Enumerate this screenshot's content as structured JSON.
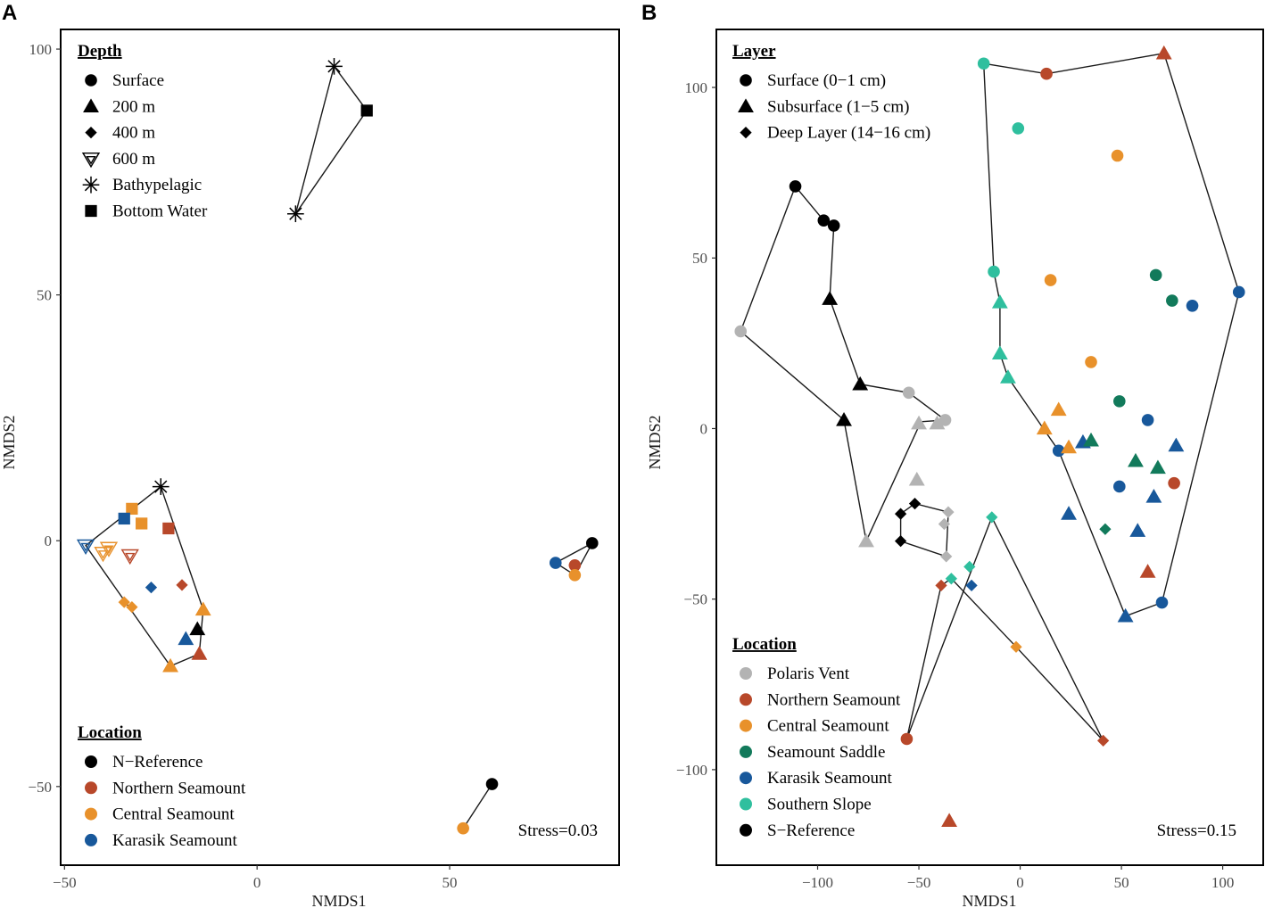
{
  "chart_data": [
    {
      "panel_label": "A",
      "type": "scatter",
      "subtype": "NMDS ordination with convex hulls",
      "xlabel": "NMDS1",
      "ylabel": "NMDS2",
      "xlim": [
        -51,
        94
      ],
      "ylim": [
        -66,
        104
      ],
      "xticks": [
        -50,
        0,
        50
      ],
      "yticks": [
        -50,
        0,
        50,
        100
      ],
      "x_tick_labels": [
        "−50",
        "0",
        "50"
      ],
      "y_tick_labels": [
        "−50",
        "0",
        "50",
        "100"
      ],
      "stress": "Stress=0.03",
      "shape_legend": {
        "title": "Depth",
        "items": [
          {
            "label": "Surface",
            "shape": "circle"
          },
          {
            "label": "200 m",
            "shape": "triangle"
          },
          {
            "label": "400 m",
            "shape": "diamond"
          },
          {
            "label": "600 m",
            "shape": "open-triangle-down"
          },
          {
            "label": "Bathypelagic",
            "shape": "asterisk"
          },
          {
            "label": "Bottom Water",
            "shape": "square"
          }
        ]
      },
      "color_legend": {
        "title": "Location",
        "items": [
          {
            "label": "N−Reference",
            "color": "#000000"
          },
          {
            "label": "Northern Seamount",
            "color": "#b8482a"
          },
          {
            "label": "Central Seamount",
            "color": "#e8912b"
          },
          {
            "label": "Karasik Seamount",
            "color": "#18589b"
          }
        ]
      },
      "hulls": [
        [
          [
            20,
            96.5
          ],
          [
            28.5,
            87.5
          ],
          [
            10,
            66.5
          ]
        ],
        [
          [
            -25,
            11
          ],
          [
            -44.5,
            -1
          ],
          [
            -22.5,
            -25.5
          ],
          [
            -15,
            -23
          ],
          [
            -14,
            -14
          ]
        ],
        [
          [
            77.5,
            -4.5
          ],
          [
            87,
            -0.5
          ],
          [
            82.5,
            -7
          ]
        ],
        [
          [
            61,
            -49.5
          ],
          [
            53.5,
            -58.5
          ]
        ]
      ],
      "points": [
        {
          "x": 20,
          "y": 96.5,
          "shape": "asterisk",
          "color": "#000000"
        },
        {
          "x": 10,
          "y": 66.5,
          "shape": "asterisk",
          "color": "#000000"
        },
        {
          "x": 28.5,
          "y": 87.5,
          "shape": "square",
          "color": "#000000"
        },
        {
          "x": -25,
          "y": 11,
          "shape": "asterisk",
          "color": "#000000"
        },
        {
          "x": -32.5,
          "y": 6.5,
          "shape": "square",
          "color": "#e8912b"
        },
        {
          "x": -34.5,
          "y": 4.5,
          "shape": "square",
          "color": "#18589b"
        },
        {
          "x": -30,
          "y": 3.5,
          "shape": "square",
          "color": "#e8912b"
        },
        {
          "x": -23,
          "y": 2.5,
          "shape": "square",
          "color": "#b8482a"
        },
        {
          "x": -44.5,
          "y": -1,
          "shape": "open-triangle-down",
          "color": "#18589b"
        },
        {
          "x": -38.5,
          "y": -1.5,
          "shape": "open-triangle-down",
          "color": "#e8912b"
        },
        {
          "x": -40,
          "y": -2.5,
          "shape": "open-triangle-down",
          "color": "#e8912b"
        },
        {
          "x": -33,
          "y": -3,
          "shape": "open-triangle-down",
          "color": "#b8482a"
        },
        {
          "x": -27.5,
          "y": -9.5,
          "shape": "diamond",
          "color": "#18589b"
        },
        {
          "x": -19.5,
          "y": -9,
          "shape": "diamond",
          "color": "#b8482a"
        },
        {
          "x": -34.5,
          "y": -12.5,
          "shape": "diamond",
          "color": "#e8912b"
        },
        {
          "x": -32.5,
          "y": -13.5,
          "shape": "diamond",
          "color": "#e8912b"
        },
        {
          "x": -14,
          "y": -14,
          "shape": "triangle",
          "color": "#e8912b"
        },
        {
          "x": -15.5,
          "y": -18,
          "shape": "triangle",
          "color": "#000000"
        },
        {
          "x": -18.5,
          "y": -20,
          "shape": "triangle",
          "color": "#18589b"
        },
        {
          "x": -15,
          "y": -23,
          "shape": "triangle",
          "color": "#b8482a"
        },
        {
          "x": -22.5,
          "y": -25.5,
          "shape": "triangle",
          "color": "#e8912b"
        },
        {
          "x": 87,
          "y": -0.5,
          "shape": "circle",
          "color": "#000000"
        },
        {
          "x": 77.5,
          "y": -4.5,
          "shape": "circle",
          "color": "#18589b"
        },
        {
          "x": 82.5,
          "y": -5,
          "shape": "circle",
          "color": "#b8482a"
        },
        {
          "x": 82.5,
          "y": -7,
          "shape": "circle",
          "color": "#e8912b"
        },
        {
          "x": 61,
          "y": -49.5,
          "shape": "circle",
          "color": "#000000"
        },
        {
          "x": 53.5,
          "y": -58.5,
          "shape": "circle",
          "color": "#e8912b"
        }
      ]
    },
    {
      "panel_label": "B",
      "type": "scatter",
      "subtype": "NMDS ordination with convex hulls",
      "xlabel": "NMDS1",
      "ylabel": "NMDS2",
      "xlim": [
        -150,
        120
      ],
      "ylim": [
        -128,
        117
      ],
      "xticks": [
        -100,
        -50,
        0,
        50,
        100
      ],
      "yticks": [
        -100,
        -50,
        0,
        50,
        100
      ],
      "x_tick_labels": [
        "−100",
        "−50",
        "0",
        "50",
        "100"
      ],
      "y_tick_labels": [
        "−100",
        "−50",
        "0",
        "50",
        "100"
      ],
      "stress": "Stress=0.15",
      "shape_legend": {
        "title": "Layer",
        "items": [
          {
            "label": "Surface (0−1 cm)",
            "shape": "circle"
          },
          {
            "label": "Subsurface (1−5 cm)",
            "shape": "triangle"
          },
          {
            "label": "Deep Layer (14−16 cm)",
            "shape": "diamond"
          }
        ]
      },
      "color_legend": {
        "title": "Location",
        "items": [
          {
            "label": "Polaris Vent",
            "color": "#b3b3b3"
          },
          {
            "label": "Northern Seamount",
            "color": "#b8482a"
          },
          {
            "label": "Central Seamount",
            "color": "#e8912b"
          },
          {
            "label": "Seamount Saddle",
            "color": "#127a5b"
          },
          {
            "label": "Karasik Seamount",
            "color": "#18589b"
          },
          {
            "label": "Southern Slope",
            "color": "#2fbf9e"
          },
          {
            "label": "S−Reference",
            "color": "#000000"
          }
        ]
      },
      "hulls": [
        [
          [
            -111,
            71
          ],
          [
            -97,
            61
          ],
          [
            -92,
            59.5
          ],
          [
            -94,
            38
          ],
          [
            -79,
            13
          ],
          [
            -55,
            10.5
          ],
          [
            -37,
            2.5
          ],
          [
            -49,
            2
          ],
          [
            -76,
            -33
          ],
          [
            -87,
            2.5
          ],
          [
            -138,
            28.5
          ]
        ],
        [
          [
            -59,
            -25
          ],
          [
            -52,
            -22
          ],
          [
            -35.5,
            -24.5
          ],
          [
            -36.5,
            -37.5
          ],
          [
            -59,
            -33
          ]
        ],
        [
          [
            -18,
            107
          ],
          [
            13,
            104
          ],
          [
            71,
            110
          ],
          [
            108,
            40
          ],
          [
            70,
            -51
          ],
          [
            52,
            -55
          ],
          [
            19,
            -6.5
          ],
          [
            -6,
            15
          ],
          [
            -10,
            22
          ],
          [
            -10,
            37
          ],
          [
            -13,
            46
          ]
        ],
        [
          [
            -14,
            -26
          ],
          [
            41,
            -91.5
          ],
          [
            -2,
            -64
          ],
          [
            -34,
            -44
          ],
          [
            -39,
            -46
          ],
          [
            -56,
            -91
          ]
        ]
      ],
      "points": [
        {
          "x": -111,
          "y": 71,
          "shape": "circle",
          "color": "#000000"
        },
        {
          "x": -97,
          "y": 61,
          "shape": "circle",
          "color": "#000000"
        },
        {
          "x": -92,
          "y": 59.5,
          "shape": "circle",
          "color": "#000000"
        },
        {
          "x": -94,
          "y": 38,
          "shape": "triangle",
          "color": "#000000"
        },
        {
          "x": -79,
          "y": 13,
          "shape": "triangle",
          "color": "#000000"
        },
        {
          "x": -87,
          "y": 2.5,
          "shape": "triangle",
          "color": "#000000"
        },
        {
          "x": -138,
          "y": 28.5,
          "shape": "circle",
          "color": "#b3b3b3"
        },
        {
          "x": -55,
          "y": 10.5,
          "shape": "circle",
          "color": "#b3b3b3"
        },
        {
          "x": -37,
          "y": 2.5,
          "shape": "circle",
          "color": "#b3b3b3"
        },
        {
          "x": -41,
          "y": 1.5,
          "shape": "triangle",
          "color": "#b3b3b3"
        },
        {
          "x": -50,
          "y": 1.5,
          "shape": "triangle",
          "color": "#b3b3b3"
        },
        {
          "x": -51,
          "y": -15,
          "shape": "triangle",
          "color": "#b3b3b3"
        },
        {
          "x": -76,
          "y": -33,
          "shape": "triangle",
          "color": "#b3b3b3"
        },
        {
          "x": -35.5,
          "y": -24.5,
          "shape": "diamond",
          "color": "#b3b3b3"
        },
        {
          "x": -37.5,
          "y": -28,
          "shape": "diamond",
          "color": "#b3b3b3"
        },
        {
          "x": -36.5,
          "y": -37.5,
          "shape": "diamond",
          "color": "#b3b3b3"
        },
        {
          "x": -59,
          "y": -25,
          "shape": "diamond",
          "color": "#000000"
        },
        {
          "x": -52,
          "y": -22,
          "shape": "diamond",
          "color": "#000000"
        },
        {
          "x": -59,
          "y": -33,
          "shape": "diamond",
          "color": "#000000"
        },
        {
          "x": -18,
          "y": 107,
          "shape": "circle",
          "color": "#2fbf9e"
        },
        {
          "x": 13,
          "y": 104,
          "shape": "circle",
          "color": "#b8482a"
        },
        {
          "x": 71,
          "y": 110,
          "shape": "triangle",
          "color": "#b8482a"
        },
        {
          "x": -1,
          "y": 88,
          "shape": "circle",
          "color": "#2fbf9e"
        },
        {
          "x": 48,
          "y": 80,
          "shape": "circle",
          "color": "#e8912b"
        },
        {
          "x": -13,
          "y": 46,
          "shape": "circle",
          "color": "#2fbf9e"
        },
        {
          "x": 15,
          "y": 43.5,
          "shape": "circle",
          "color": "#e8912b"
        },
        {
          "x": 67,
          "y": 45,
          "shape": "circle",
          "color": "#127a5b"
        },
        {
          "x": 75,
          "y": 37.5,
          "shape": "circle",
          "color": "#127a5b"
        },
        {
          "x": 85,
          "y": 36,
          "shape": "circle",
          "color": "#18589b"
        },
        {
          "x": 108,
          "y": 40,
          "shape": "circle",
          "color": "#18589b"
        },
        {
          "x": -10,
          "y": 37,
          "shape": "triangle",
          "color": "#2fbf9e"
        },
        {
          "x": -10,
          "y": 22,
          "shape": "triangle",
          "color": "#2fbf9e"
        },
        {
          "x": -6,
          "y": 15,
          "shape": "triangle",
          "color": "#2fbf9e"
        },
        {
          "x": 35,
          "y": 19.5,
          "shape": "circle",
          "color": "#e8912b"
        },
        {
          "x": 49,
          "y": 8,
          "shape": "circle",
          "color": "#127a5b"
        },
        {
          "x": 63,
          "y": 2.5,
          "shape": "circle",
          "color": "#18589b"
        },
        {
          "x": 19,
          "y": 5.5,
          "shape": "triangle",
          "color": "#e8912b"
        },
        {
          "x": 12,
          "y": 0,
          "shape": "triangle",
          "color": "#e8912b"
        },
        {
          "x": 19,
          "y": -6.5,
          "shape": "circle",
          "color": "#18589b"
        },
        {
          "x": 24,
          "y": -5.5,
          "shape": "triangle",
          "color": "#e8912b"
        },
        {
          "x": 31,
          "y": -4,
          "shape": "triangle",
          "color": "#18589b"
        },
        {
          "x": 35,
          "y": -3.5,
          "shape": "triangle",
          "color": "#127a5b"
        },
        {
          "x": 57,
          "y": -9.5,
          "shape": "triangle",
          "color": "#127a5b"
        },
        {
          "x": 68,
          "y": -11.5,
          "shape": "triangle",
          "color": "#127a5b"
        },
        {
          "x": 77,
          "y": -5,
          "shape": "triangle",
          "color": "#18589b"
        },
        {
          "x": 49,
          "y": -17,
          "shape": "circle",
          "color": "#18589b"
        },
        {
          "x": 76,
          "y": -16,
          "shape": "circle",
          "color": "#b8482a"
        },
        {
          "x": 66,
          "y": -20,
          "shape": "triangle",
          "color": "#18589b"
        },
        {
          "x": 24,
          "y": -25,
          "shape": "triangle",
          "color": "#18589b"
        },
        {
          "x": 42,
          "y": -29.5,
          "shape": "diamond",
          "color": "#127a5b"
        },
        {
          "x": 58,
          "y": -30,
          "shape": "triangle",
          "color": "#18589b"
        },
        {
          "x": 63,
          "y": -42,
          "shape": "triangle",
          "color": "#b8482a"
        },
        {
          "x": 70,
          "y": -51,
          "shape": "circle",
          "color": "#18589b"
        },
        {
          "x": 52,
          "y": -55,
          "shape": "triangle",
          "color": "#18589b"
        },
        {
          "x": -14,
          "y": -26,
          "shape": "diamond",
          "color": "#2fbf9e"
        },
        {
          "x": -25,
          "y": -40.5,
          "shape": "diamond",
          "color": "#2fbf9e"
        },
        {
          "x": -34,
          "y": -44,
          "shape": "diamond",
          "color": "#2fbf9e"
        },
        {
          "x": -24,
          "y": -46,
          "shape": "diamond",
          "color": "#18589b"
        },
        {
          "x": -39,
          "y": -46,
          "shape": "diamond",
          "color": "#b8482a"
        },
        {
          "x": -2,
          "y": -64,
          "shape": "diamond",
          "color": "#e8912b"
        },
        {
          "x": 41,
          "y": -91.5,
          "shape": "diamond",
          "color": "#b8482a"
        },
        {
          "x": -56,
          "y": -91,
          "shape": "circle",
          "color": "#b8482a"
        },
        {
          "x": -35,
          "y": -115,
          "shape": "triangle",
          "color": "#b8482a"
        }
      ]
    }
  ]
}
